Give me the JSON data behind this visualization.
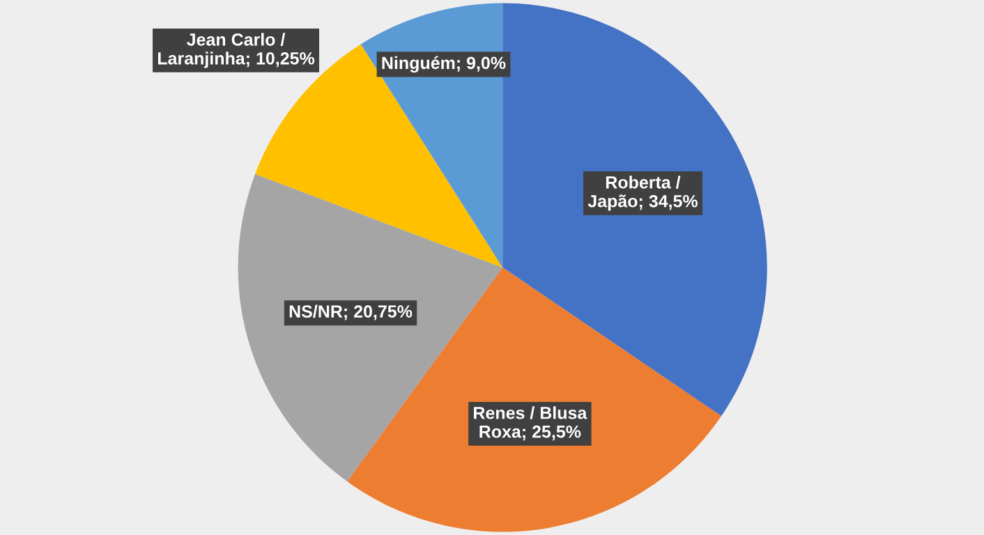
{
  "chart_data": {
    "type": "pie",
    "categories": [
      "Roberta / Japão",
      "Renes / Blusa Roxa",
      "NS/NR",
      "Jean Carlo / Laranjinha",
      "Ninguém"
    ],
    "values": [
      34.5,
      25.5,
      20.75,
      10.25,
      9.0
    ],
    "value_labels": [
      "34,5%",
      "25,5%",
      "20,75%",
      "10,25%",
      "9,0%"
    ],
    "colors": [
      "#4472c4",
      "#ed7d31",
      "#a5a5a5",
      "#ffc000",
      "#5b9bd5"
    ],
    "legend": false
  }
}
